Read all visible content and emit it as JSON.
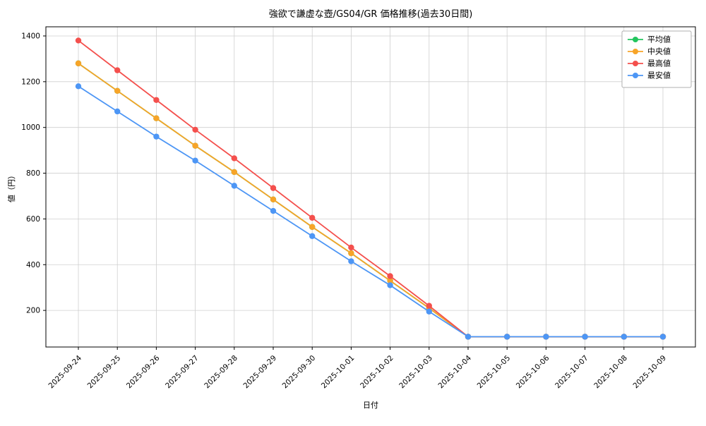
{
  "figure": {
    "background": "#ffffff"
  },
  "chart_data": {
    "type": "line",
    "title": "強欲で謙虚な壺/GS04/GR 価格推移(過去30日間)",
    "xlabel": "日付",
    "ylabel": "値（円）",
    "x": [
      "2025-09-24",
      "2025-09-25",
      "2025-09-26",
      "2025-09-27",
      "2025-09-28",
      "2025-09-29",
      "2025-09-30",
      "2025-10-01",
      "2025-10-02",
      "2025-10-03",
      "2025-10-04",
      "2025-10-05",
      "2025-10-06",
      "2025-10-07",
      "2025-10-08",
      "2025-10-09"
    ],
    "series": [
      {
        "name": "平均値",
        "color": "#22c55e",
        "values": [
          1280,
          1160,
          1040,
          920,
          805,
          685,
          565,
          450,
          330,
          210,
          85,
          85,
          85,
          85,
          85,
          85
        ]
      },
      {
        "name": "中央値",
        "color": "#f7a428",
        "values": [
          1280,
          1160,
          1040,
          920,
          805,
          685,
          565,
          450,
          330,
          210,
          85,
          85,
          85,
          85,
          85,
          85
        ]
      },
      {
        "name": "最高値",
        "color": "#f4504d",
        "values": [
          1380,
          1250,
          1120,
          990,
          865,
          735,
          605,
          475,
          350,
          220,
          85,
          85,
          85,
          85,
          85,
          85
        ]
      },
      {
        "name": "最安値",
        "color": "#4d96f5",
        "values": [
          1180,
          1070,
          960,
          855,
          745,
          635,
          525,
          415,
          310,
          195,
          85,
          85,
          85,
          85,
          85,
          85
        ]
      }
    ],
    "yticks": [
      200,
      400,
      600,
      800,
      1000,
      1200,
      1400
    ],
    "ylim": [
      40,
      1440
    ],
    "grid": true,
    "legend_position": "upper right",
    "grid_color": "#cfcfcf",
    "axis_color": "#000000"
  }
}
